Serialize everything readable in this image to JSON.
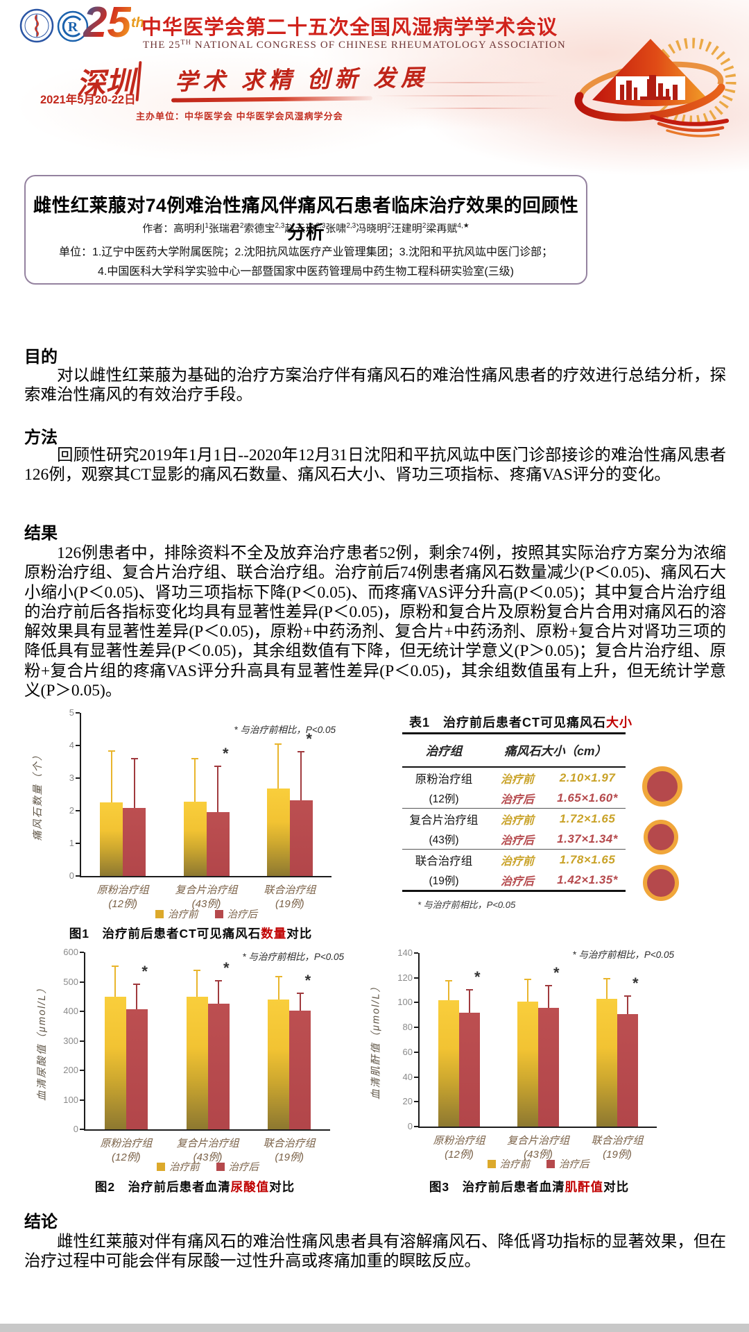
{
  "header": {
    "congress_title_cn": "中华医学会第二十五次全国风湿病学学术会议",
    "congress_title_en_pre": "THE 25",
    "congress_title_en_sup": "TH",
    "congress_title_en_rest": " NATIONAL CONGRESS OF CHINESE RHEUMATOLOGY ASSOCIATION",
    "anniversary_number": "25",
    "anniversary_suffix": "th",
    "city": "深圳",
    "dates": "2021年5月20-22日",
    "slogan": "学术 求精 创新 发展",
    "organizer": "主办单位：中华医学会  中华医学会风湿病学分会"
  },
  "title_block": {
    "title": "雌性红莱菔对74例难治性痛风伴痛风石患者临床治疗效果的回顾性分析",
    "authors_label": "作者：",
    "authors": [
      {
        "name": "高明利",
        "sup": "1"
      },
      {
        "name": "张瑞君",
        "sup": "2"
      },
      {
        "name": "索德宝",
        "sup": "2,3"
      },
      {
        "name": "赵云玲",
        "sup": "2,3"
      },
      {
        "name": "张啸",
        "sup": "2,3"
      },
      {
        "name": "冯晓明",
        "sup": "2"
      },
      {
        "name": "汪建明",
        "sup": "2"
      },
      {
        "name": "梁再赋",
        "sup": "4,★"
      }
    ],
    "affiliation_line1": "单位：1.辽宁中医药大学附属医院；2.沈阳抗风竑医疗产业管理集团；3.沈阳和平抗风竑中医门诊部；",
    "affiliation_line2": "4.中国医科大学科学实验中心一部暨国家中医药管理局中药生物工程科研实验室(三级)"
  },
  "sections": {
    "purpose_heading": "目的",
    "purpose_text": "对以雌性红莱菔为基础的治疗方案治疗伴有痛风石的难治性痛风患者的疗效进行总结分析，探索难治性痛风的有效治疗手段。",
    "methods_heading": "方法",
    "methods_text": "回顾性研究2019年1月1日--2020年12月31日沈阳和平抗风竑中医门诊部接诊的难治性痛风患者126例，观察其CT显影的痛风石数量、痛风石大小、肾功三项指标、疼痛VAS评分的变化。",
    "results_heading": "结果",
    "results_text": "126例患者中，排除资料不全及放弃治疗患者52例，剩余74例，按照其实际治疗方案分为浓缩原粉治疗组、复合片治疗组、联合治疗组。治疗前后74例患者痛风石数量减少(P＜0.05)、痛风石大小缩小(P＜0.05)、肾功三项指标下降(P＜0.05)、而疼痛VAS评分升高(P＜0.05)；其中复合片治疗组的治疗前后各指标变化均具有显著性差异(P＜0.05)，原粉和复合片及原粉复合片合用对痛风石的溶解效果具有显著性差异(P＜0.05)，原粉+中药汤剂、复合片+中药汤剂、原粉+复合片对肾功三项的降低具有显著性差异(P＜0.05)，其余组数值有下降，但无统计学意义(P＞0.05)；复合片治疗组、原粉+复合片组的疼痛VAS评分升高具有显著性差异(P＜0.05)，其余组数值虽有上升，但无统计学意义(P＞0.05)。",
    "conclusion_heading": "结论",
    "conclusion_text": "雌性红莱菔对伴有痛风石的难治性痛风患者具有溶解痛风石、降低肾功指标的显著效果，但在治疗过程中可能会伴有尿酸一过性升高或疼痛加重的瞑眩反应。"
  },
  "table1": {
    "title_prefix": "表1　治疗前后患者CT可见痛风石",
    "title_keyword": "大小",
    "col1": "治疗组",
    "col2": "痛风石大小（cm）",
    "rows": [
      {
        "group": "原粉治疗组",
        "n": "(12例)",
        "before_label": "治疗前",
        "before": "2.10×1.97",
        "after_label": "治疗后",
        "after": "1.65×1.60*"
      },
      {
        "group": "复合片治疗组",
        "n": "(43例)",
        "before_label": "治疗前",
        "before": "1.72×1.65",
        "after_label": "治疗后",
        "after": "1.37×1.34*"
      },
      {
        "group": "联合治疗组",
        "n": "(19例)",
        "before_label": "治疗前",
        "before": "1.78×1.65",
        "after_label": "治疗后",
        "after": "1.42×1.35*"
      }
    ],
    "footnote": "* 与治疗前相比，P<0.05"
  },
  "chart_data": [
    {
      "type": "bar",
      "caption": {
        "prefix": "图1　治疗前后患者CT可见痛风石",
        "keyword": "数量",
        "suffix": "对比"
      },
      "ylabel": "痛风石数量（个）",
      "ylim": [
        0,
        5
      ],
      "ytick_step": 1,
      "categories": [
        "原粉治疗组",
        "复合片治疗组",
        "联合治疗组"
      ],
      "category_counts": [
        "(12例)",
        "(43例)",
        "(19例)"
      ],
      "legend": [
        "治疗前",
        "治疗后"
      ],
      "annotation": "* 与治疗前相比，P<0.05",
      "series": [
        {
          "name": "治疗前",
          "values": [
            2.25,
            2.28,
            2.68
          ],
          "error_top": [
            3.8,
            3.57,
            4.03
          ],
          "significant": [
            false,
            false,
            false
          ]
        },
        {
          "name": "治疗后",
          "values": [
            2.08,
            1.95,
            2.32
          ],
          "error_top": [
            3.58,
            3.33,
            3.78
          ],
          "significant": [
            false,
            true,
            true
          ]
        }
      ]
    },
    {
      "type": "bar",
      "caption": {
        "prefix": "图2　治疗前后患者血清",
        "keyword": "尿酸值",
        "suffix": "对比"
      },
      "ylabel": "血清尿酸值（μmol/L）",
      "ylim": [
        0,
        600
      ],
      "ytick_step": 100,
      "categories": [
        "原粉治疗组",
        "复合片治疗组",
        "联合治疗组"
      ],
      "category_counts": [
        "(12例)",
        "(43例)",
        "(19例)"
      ],
      "legend": [
        "治疗前",
        "治疗后"
      ],
      "annotation": "* 与治疗前相比，P<0.05",
      "series": [
        {
          "name": "治疗前",
          "values": [
            450,
            450,
            440
          ],
          "error_top": [
            550,
            537,
            515
          ],
          "significant": [
            false,
            false,
            false
          ]
        },
        {
          "name": "治疗后",
          "values": [
            408,
            425,
            402
          ],
          "error_top": [
            490,
            502,
            460
          ],
          "significant": [
            true,
            true,
            true
          ]
        }
      ]
    },
    {
      "type": "bar",
      "caption": {
        "prefix": "图3　治疗前后患者血清",
        "keyword": "肌酐值",
        "suffix": "对比"
      },
      "ylabel": "血清肌酐值（μmol/L）",
      "ylim": [
        0,
        140
      ],
      "ytick_step": 20,
      "categories": [
        "原粉治疗组",
        "复合片治疗组",
        "联合治疗组"
      ],
      "category_counts": [
        "(12例)",
        "(43例)",
        "(19例)"
      ],
      "legend": [
        "治疗前",
        "治疗后"
      ],
      "annotation": "* 与治疗前相比，P<0.05",
      "series": [
        {
          "name": "治疗前",
          "values": [
            102,
            101,
            103
          ],
          "error_top": [
            117,
            118,
            119
          ],
          "significant": [
            false,
            false,
            false
          ]
        },
        {
          "name": "治疗后",
          "values": [
            92,
            96,
            91
          ],
          "error_top": [
            110,
            113,
            105
          ],
          "significant": [
            true,
            true,
            true
          ]
        }
      ]
    }
  ]
}
